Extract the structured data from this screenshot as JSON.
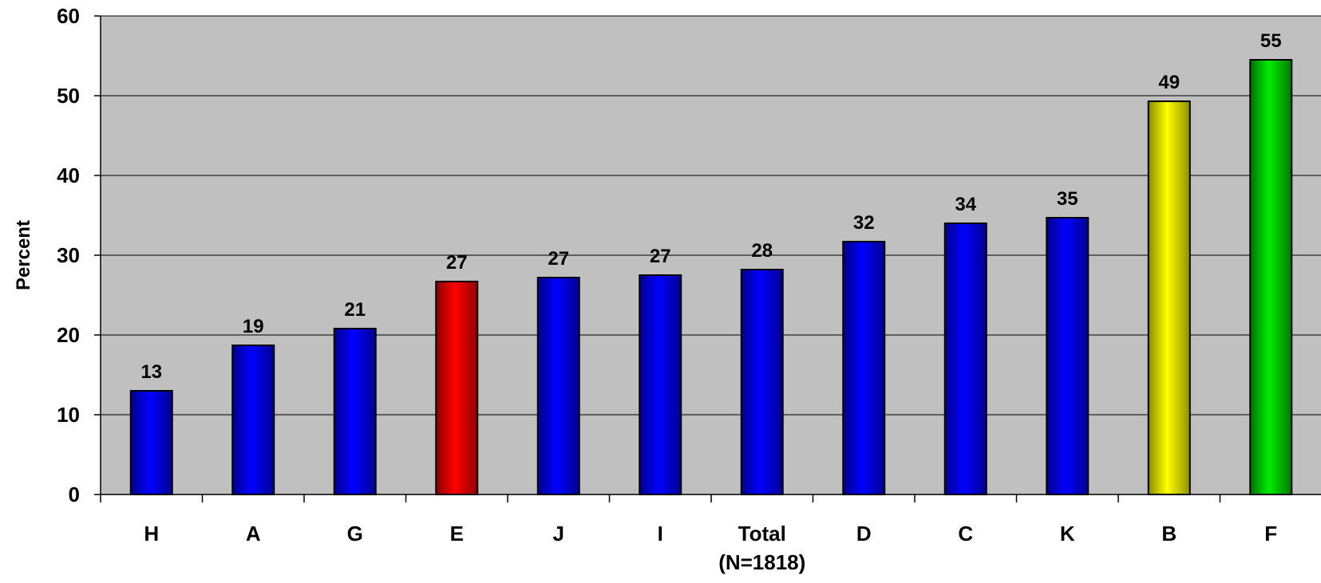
{
  "chart_data": {
    "type": "bar",
    "title": "",
    "xlabel": "",
    "ylabel": "Percent",
    "ylim": [
      0,
      60
    ],
    "yticks": [
      0,
      10,
      20,
      30,
      40,
      50,
      60
    ],
    "grid": true,
    "legend": "none",
    "categories": [
      [
        "H"
      ],
      [
        "A"
      ],
      [
        "G"
      ],
      [
        "E"
      ],
      [
        "J"
      ],
      [
        "I"
      ],
      [
        "Total",
        "(N=1818)"
      ],
      [
        "D"
      ],
      [
        "C"
      ],
      [
        "K"
      ],
      [
        "B"
      ],
      [
        "F"
      ]
    ],
    "values": [
      13,
      18.7,
      20.8,
      26.7,
      27.2,
      27.5,
      28.2,
      31.7,
      34,
      34.7,
      49.3,
      54.5
    ],
    "data_labels": [
      "13",
      "19",
      "21",
      "27",
      "27",
      "27",
      "28",
      "32",
      "34",
      "35",
      "49",
      "55"
    ],
    "bar_colors": [
      "#0000ff",
      "#0000ff",
      "#0000ff",
      "#ff0000",
      "#0000ff",
      "#0000ff",
      "#0000ff",
      "#0000ff",
      "#0000ff",
      "#0000ff",
      "#ffff00",
      "#00cc00"
    ],
    "plot_background": "#c0c0c0"
  }
}
